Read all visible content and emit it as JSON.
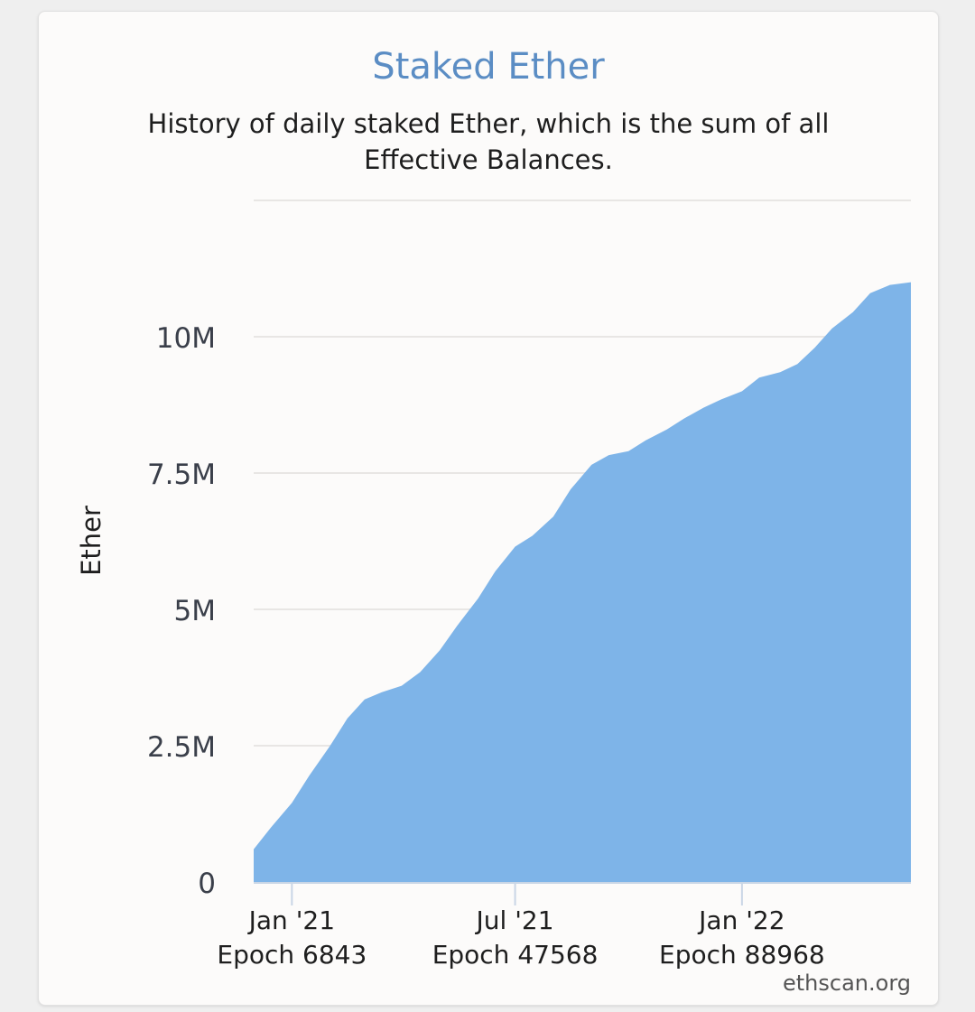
{
  "page": {
    "title": "Staked Ether",
    "subtitle": "History of daily staked Ether, which is the sum of all Effective Balances.",
    "footer": "ethscan.org"
  },
  "colors": {
    "title": "#5b8dc4",
    "area_fill": "#7eb4e8",
    "grid": "#e8e6e4",
    "axis_text": "#3a3f4a"
  },
  "chart_data": {
    "type": "area",
    "title": "Staked Ether",
    "subtitle": "History of daily staked Ether, which is the sum of all Effective Balances.",
    "ylabel": "Ether",
    "xlabel": "",
    "ylim": [
      0,
      12500000
    ],
    "grid": true,
    "x_range": [
      "2020-12-01",
      "2022-05-18"
    ],
    "y_ticks": [
      {
        "value": 0,
        "label": "0"
      },
      {
        "value": 2500000,
        "label": "2.5M"
      },
      {
        "value": 5000000,
        "label": "5M"
      },
      {
        "value": 7500000,
        "label": "7.5M"
      },
      {
        "value": 10000000,
        "label": "10M"
      }
    ],
    "x_ticks": [
      {
        "date": "2021-01-01",
        "label": "Jan '21",
        "sublabel": "Epoch 6843"
      },
      {
        "date": "2021-07-01",
        "label": "Jul '21",
        "sublabel": "Epoch 47568"
      },
      {
        "date": "2022-01-01",
        "label": "Jan '22",
        "sublabel": "Epoch 88968"
      }
    ],
    "series": [
      {
        "name": "",
        "points": [
          [
            "2020-12-01",
            600000
          ],
          [
            "2020-12-15",
            1000000
          ],
          [
            "2021-01-01",
            1450000
          ],
          [
            "2021-01-15",
            1950000
          ],
          [
            "2021-02-01",
            2500000
          ],
          [
            "2021-02-15",
            3000000
          ],
          [
            "2021-03-01",
            3350000
          ],
          [
            "2021-03-15",
            3480000
          ],
          [
            "2021-03-31",
            3600000
          ],
          [
            "2021-04-15",
            3850000
          ],
          [
            "2021-05-01",
            4250000
          ],
          [
            "2021-05-15",
            4700000
          ],
          [
            "2021-06-01",
            5200000
          ],
          [
            "2021-06-15",
            5700000
          ],
          [
            "2021-07-01",
            6150000
          ],
          [
            "2021-07-15",
            6350000
          ],
          [
            "2021-08-01",
            6700000
          ],
          [
            "2021-08-15",
            7200000
          ],
          [
            "2021-09-01",
            7650000
          ],
          [
            "2021-09-15",
            7830000
          ],
          [
            "2021-10-01",
            7900000
          ],
          [
            "2021-10-15",
            8100000
          ],
          [
            "2021-11-01",
            8300000
          ],
          [
            "2021-11-15",
            8500000
          ],
          [
            "2021-12-01",
            8700000
          ],
          [
            "2021-12-15",
            8850000
          ],
          [
            "2022-01-01",
            9000000
          ],
          [
            "2022-01-15",
            9250000
          ],
          [
            "2022-02-01",
            9350000
          ],
          [
            "2022-02-15",
            9500000
          ],
          [
            "2022-03-01",
            9800000
          ],
          [
            "2022-03-15",
            10150000
          ],
          [
            "2022-04-01",
            10450000
          ],
          [
            "2022-04-15",
            10800000
          ],
          [
            "2022-05-01",
            10950000
          ],
          [
            "2022-05-18",
            11000000
          ]
        ]
      }
    ]
  }
}
